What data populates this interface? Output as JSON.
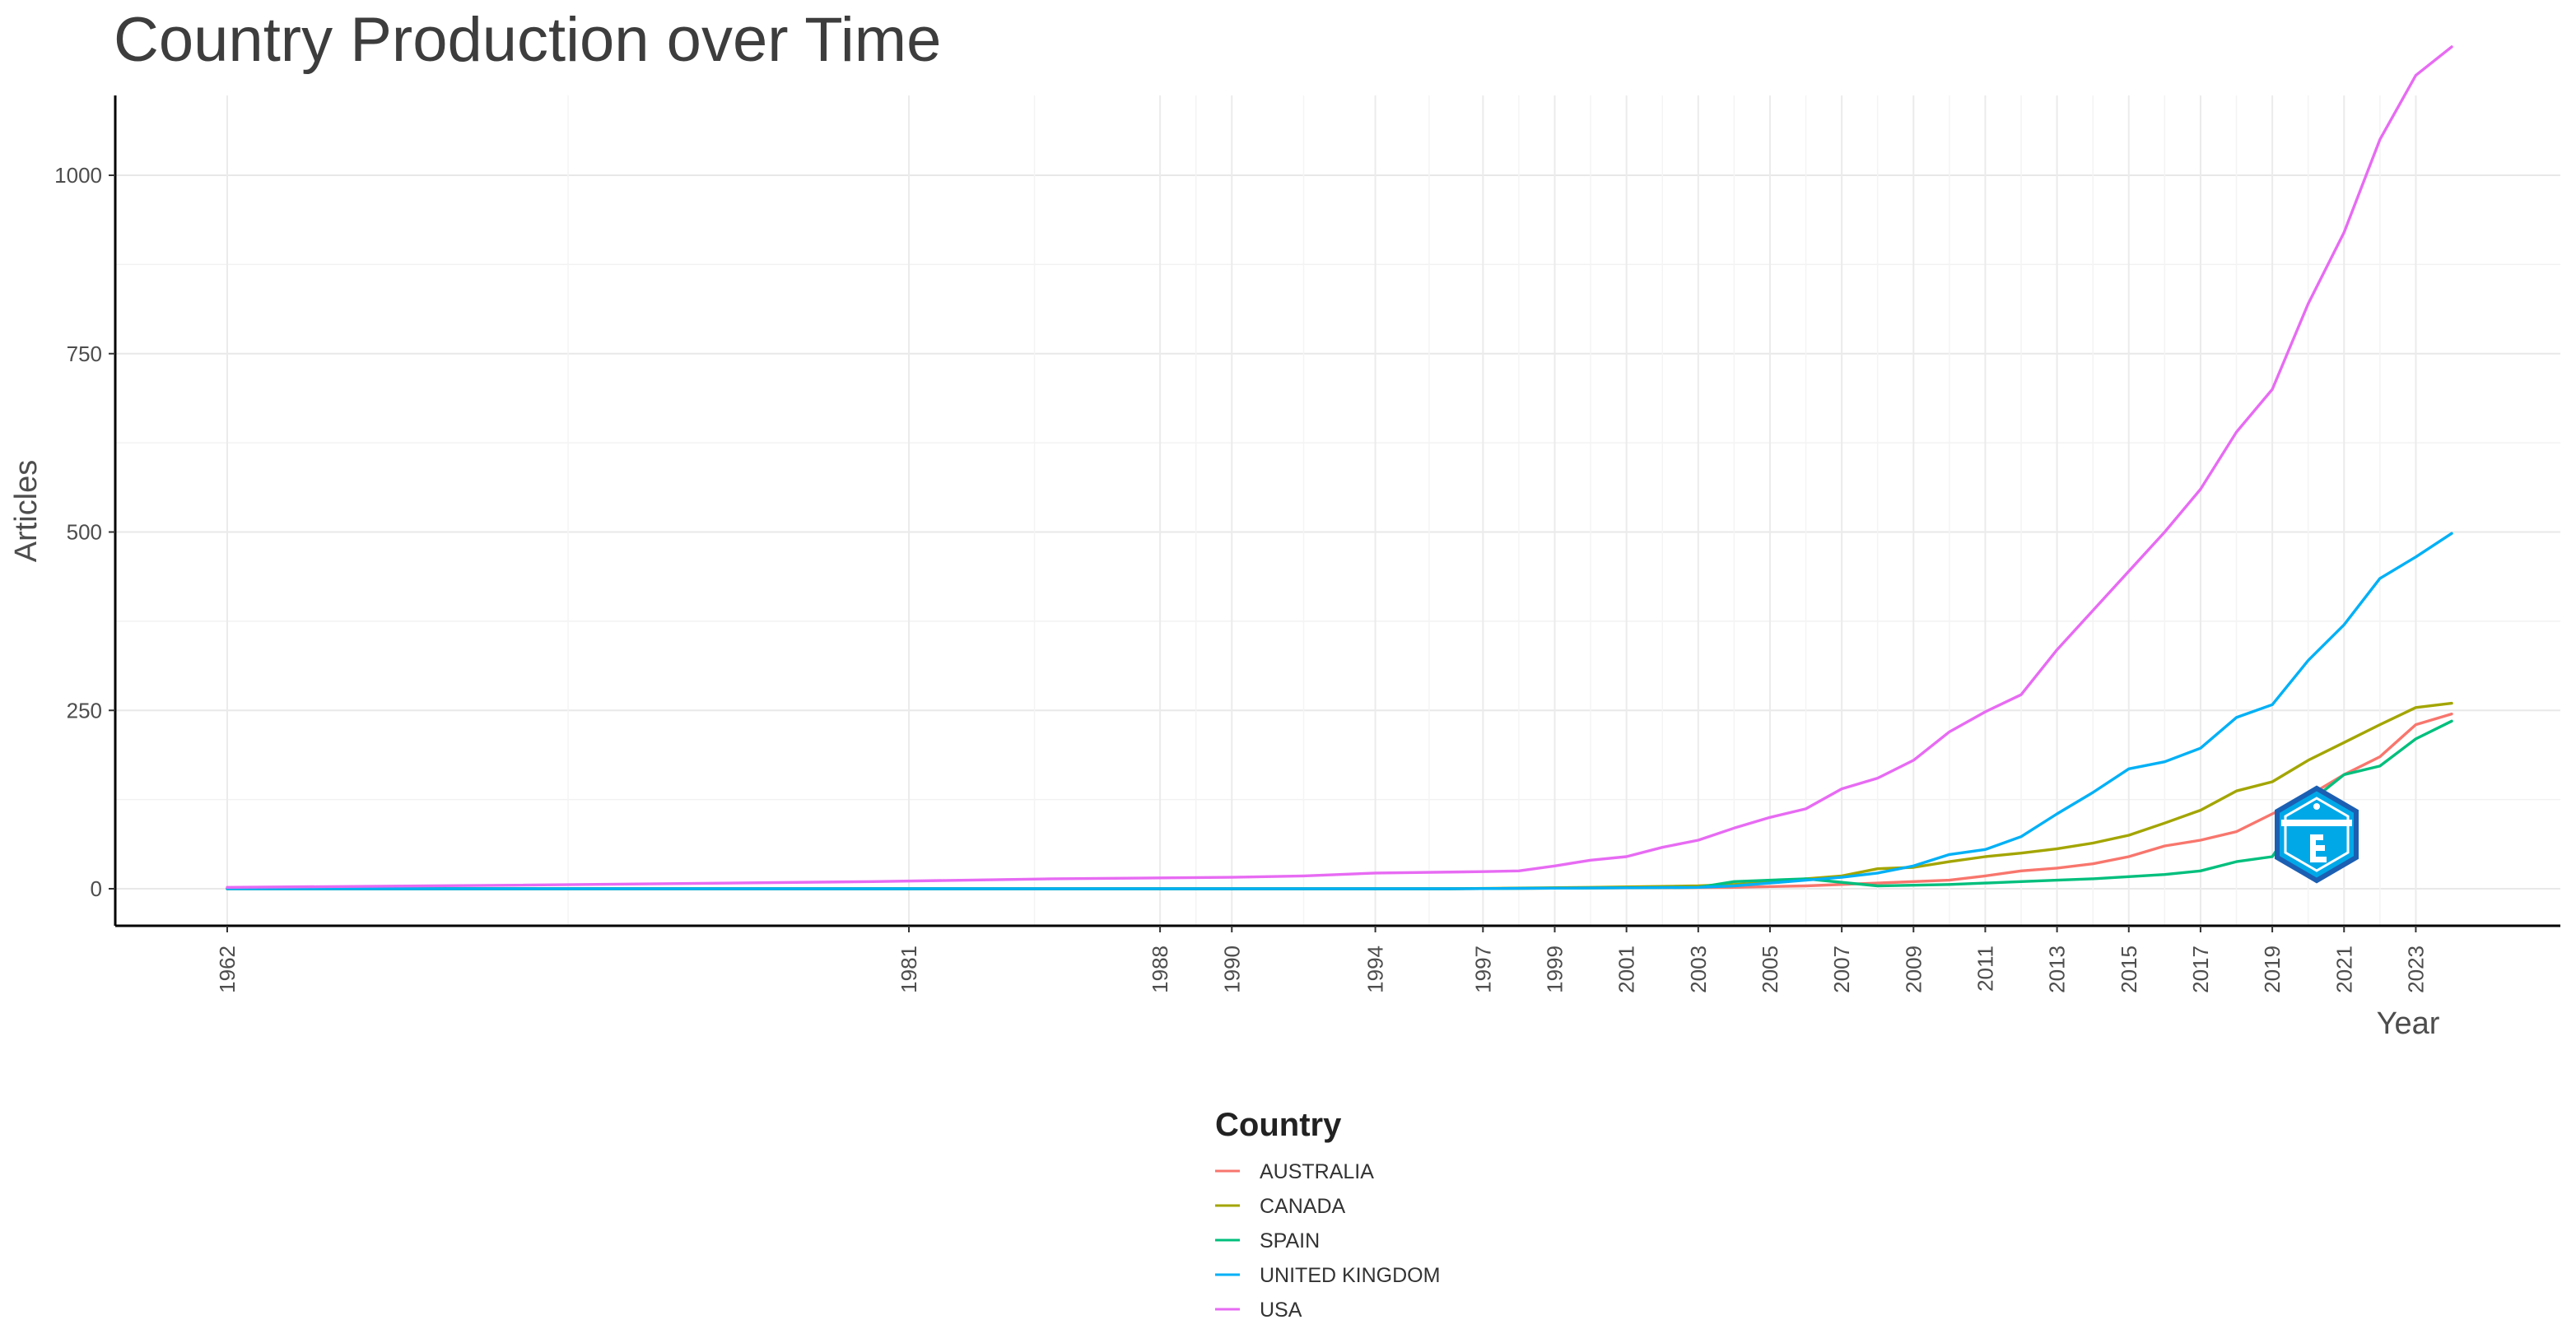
{
  "chart_data": {
    "type": "line",
    "title": "Country Production over Time",
    "xlabel": "Year",
    "ylabel": "Articles",
    "xlim": [
      1962,
      2024
    ],
    "ylim": [
      0,
      1200
    ],
    "x_ticks": [
      1962,
      1981,
      1988,
      1990,
      1994,
      1997,
      1999,
      2001,
      2003,
      2005,
      2007,
      2009,
      2011,
      2013,
      2015,
      2017,
      2019,
      2021,
      2023
    ],
    "y_ticks": [
      0,
      250,
      500,
      750,
      1000
    ],
    "y_tick_labels": [
      "0",
      "250",
      "500",
      "750",
      "1000"
    ],
    "grid": true,
    "legend_position": "bottom",
    "legend_title": "Country",
    "series": [
      {
        "name": "AUSTRALIA",
        "color": "#F8766D",
        "x": [
          1962,
          1990,
          1996,
          2000,
          2004,
          2006,
          2008,
          2010,
          2011,
          2012,
          2013,
          2014,
          2015,
          2016,
          2017,
          2018,
          2019,
          2020,
          2021,
          2022,
          2023,
          2024
        ],
        "y": [
          0,
          0,
          0,
          1,
          2,
          4,
          8,
          12,
          18,
          25,
          29,
          35,
          45,
          60,
          68,
          80,
          105,
          130,
          160,
          185,
          230,
          245
        ]
      },
      {
        "name": "CANADA",
        "color": "#A3A500",
        "x": [
          1962,
          1990,
          1996,
          2000,
          2003,
          2004,
          2005,
          2006,
          2007,
          2008,
          2009,
          2010,
          2011,
          2012,
          2013,
          2014,
          2015,
          2016,
          2017,
          2018,
          2019,
          2020,
          2021,
          2022,
          2023,
          2024
        ],
        "y": [
          0,
          0,
          0,
          2,
          4,
          6,
          9,
          14,
          18,
          28,
          30,
          38,
          45,
          50,
          56,
          64,
          75,
          92,
          110,
          137,
          150,
          180,
          205,
          230,
          254,
          260
        ]
      },
      {
        "name": "SPAIN",
        "color": "#00BF7D",
        "x": [
          1962,
          1990,
          1996,
          2000,
          2003,
          2004,
          2006,
          2008,
          2009,
          2010,
          2011,
          2012,
          2013,
          2014,
          2015,
          2016,
          2017,
          2018,
          2019,
          2020,
          2021,
          2022,
          2023,
          2024
        ],
        "y": [
          0,
          0,
          0,
          1,
          2,
          10,
          14,
          4,
          5,
          6,
          8,
          10,
          12,
          14,
          17,
          20,
          25,
          38,
          45,
          120,
          160,
          172,
          210,
          235
        ]
      },
      {
        "name": "UNITED KINGDOM",
        "color": "#00B0F6",
        "x": [
          1962,
          1990,
          1996,
          2000,
          2003,
          2004,
          2005,
          2006,
          2007,
          2008,
          2009,
          2010,
          2011,
          2012,
          2013,
          2014,
          2015,
          2016,
          2017,
          2018,
          2019,
          2020,
          2021,
          2022,
          2023,
          2024
        ],
        "y": [
          0,
          0,
          0,
          1,
          2,
          4,
          8,
          12,
          16,
          22,
          32,
          48,
          55,
          73,
          105,
          135,
          168,
          178,
          197,
          240,
          258,
          320,
          370,
          435,
          465,
          498
        ]
      },
      {
        "name": "USA",
        "color": "#E76BF3",
        "x": [
          1962,
          1970,
          1980,
          1985,
          1990,
          1992,
          1994,
          1997,
          1998,
          1999,
          2000,
          2001,
          2002,
          2003,
          2004,
          2005,
          2006,
          2007,
          2008,
          2009,
          2010,
          2011,
          2012,
          2013,
          2014,
          2015,
          2016,
          2017,
          2018,
          2019,
          2020,
          2021,
          2022,
          2023,
          2024
        ],
        "y": [
          2,
          5,
          10,
          14,
          16,
          18,
          22,
          24,
          25,
          32,
          40,
          45,
          58,
          68,
          85,
          100,
          112,
          140,
          155,
          180,
          220,
          248,
          272,
          335,
          390,
          445,
          500,
          560,
          640,
          700,
          820,
          920,
          1050,
          1140,
          1180
        ]
      }
    ]
  }
}
